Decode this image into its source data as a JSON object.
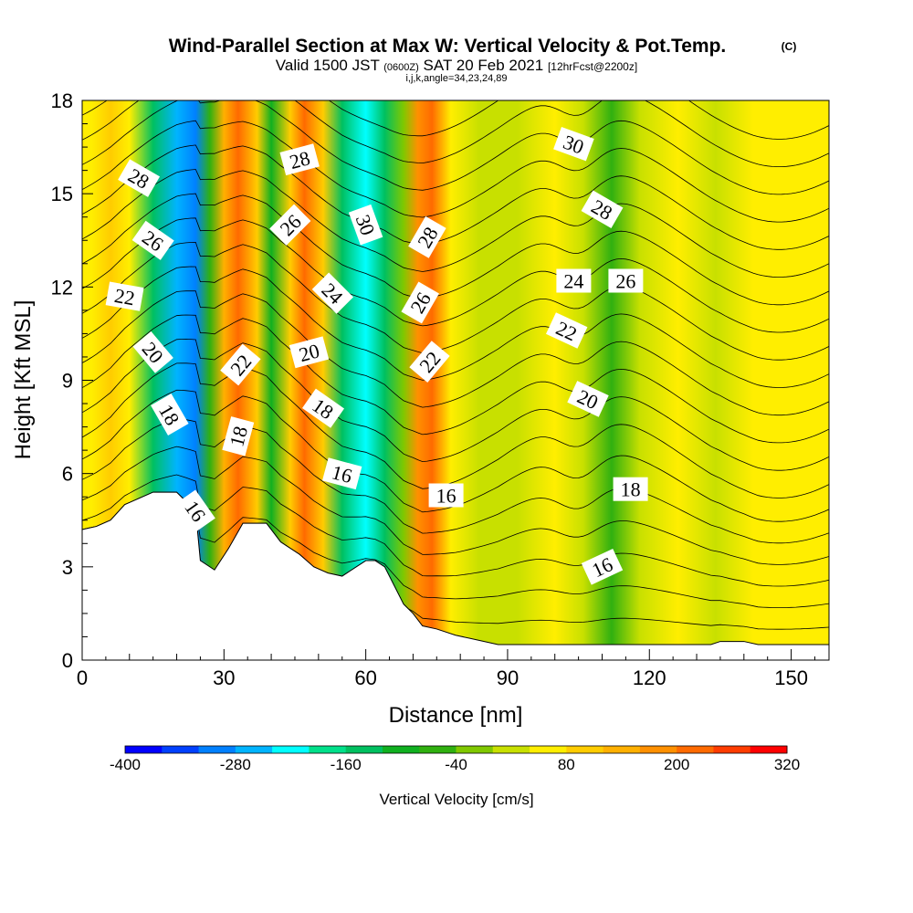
{
  "header": {
    "title": "Wind-Parallel Section at Max W: Vertical Velocity & Pot.Temp.",
    "copyright": "(C)",
    "valid_prefix": "Valid 1500 JST",
    "valid_utc": "(0600Z)",
    "valid_date": "SAT 20 Feb 2021",
    "forecast": "[12hrFcst@2200z]",
    "indices": "i,j,k,angle=34,23,24,89"
  },
  "chart_data": {
    "type": "heatmap",
    "xlabel": "Distance [nm]",
    "ylabel": "Height [Kft MSL]",
    "xlim": [
      0,
      158
    ],
    "ylim": [
      0,
      18
    ],
    "x_ticks": [
      0,
      30,
      60,
      90,
      120,
      150
    ],
    "y_ticks": [
      0,
      3,
      6,
      9,
      12,
      15,
      18
    ],
    "colorbar": {
      "label": "Vertical Velocity [cm/s]",
      "ticks": [
        -400,
        -280,
        -160,
        -40,
        80,
        200,
        320
      ],
      "range": [
        -400,
        320
      ],
      "step": 40,
      "colors": [
        "#0000ff",
        "#0040ff",
        "#0080ff",
        "#00b4ff",
        "#00ffff",
        "#00e08a",
        "#00c060",
        "#10b020",
        "#30b010",
        "#80c800",
        "#c8e000",
        "#ffee00",
        "#ffcc00",
        "#ffb000",
        "#ff9000",
        "#ff6a00",
        "#ff3c00",
        "#ff0000",
        "#d0002a",
        "#a00060",
        "#6a0090"
      ]
    },
    "vertical_velocity_bands": [
      {
        "x": 2,
        "w": 55
      },
      {
        "x": 6,
        "w": 90
      },
      {
        "x": 10,
        "w": 50
      },
      {
        "x": 15,
        "w": -140
      },
      {
        "x": 20,
        "w": -250
      },
      {
        "x": 24,
        "w": -310
      },
      {
        "x": 27,
        "w": -60
      },
      {
        "x": 30,
        "w": 150
      },
      {
        "x": 33,
        "w": 230
      },
      {
        "x": 37,
        "w": 110
      },
      {
        "x": 40,
        "w": -90
      },
      {
        "x": 44,
        "w": 100
      },
      {
        "x": 47,
        "w": 200
      },
      {
        "x": 51,
        "w": 80
      },
      {
        "x": 55,
        "w": -160
      },
      {
        "x": 60,
        "w": -220
      },
      {
        "x": 64,
        "w": -150
      },
      {
        "x": 68,
        "w": -40
      },
      {
        "x": 71,
        "w": 170
      },
      {
        "x": 74,
        "w": 220
      },
      {
        "x": 78,
        "w": 70
      },
      {
        "x": 84,
        "w": 0
      },
      {
        "x": 92,
        "w": 10
      },
      {
        "x": 100,
        "w": 50
      },
      {
        "x": 106,
        "w": 20
      },
      {
        "x": 112,
        "w": -70
      },
      {
        "x": 118,
        "w": 10
      },
      {
        "x": 126,
        "w": 45
      },
      {
        "x": 134,
        "w": 20
      },
      {
        "x": 142,
        "w": 60
      },
      {
        "x": 150,
        "w": 40
      },
      {
        "x": 156,
        "w": 70
      }
    ],
    "terrain": {
      "x": [
        0,
        3,
        6,
        9,
        15,
        20,
        24,
        25,
        28,
        31,
        34,
        39,
        42,
        46,
        49,
        52,
        55,
        57,
        60,
        62,
        64,
        66,
        68,
        70,
        72,
        75,
        79,
        82,
        88,
        95,
        100,
        110,
        120,
        125,
        130,
        133,
        135,
        138,
        140,
        143,
        147,
        151,
        155,
        158
      ],
      "height": [
        4.2,
        4.3,
        4.5,
        5.0,
        5.4,
        5.4,
        4.8,
        3.2,
        2.9,
        3.6,
        4.4,
        4.4,
        3.8,
        3.4,
        3.0,
        2.8,
        2.7,
        2.9,
        3.2,
        3.2,
        3.0,
        2.4,
        1.8,
        1.5,
        1.1,
        1.0,
        0.8,
        0.7,
        0.5,
        0.5,
        0.5,
        0.5,
        0.5,
        0.5,
        0.5,
        0.5,
        0.6,
        0.6,
        0.6,
        0.5,
        0.5,
        0.5,
        0.5,
        0.5
      ]
    },
    "theta_contour_labels": [
      {
        "label": "28",
        "x": 12,
        "y": 15.5,
        "angle": 30
      },
      {
        "label": "26",
        "x": 15,
        "y": 13.5,
        "angle": 35
      },
      {
        "label": "22",
        "x": 9,
        "y": 11.7,
        "angle": 10
      },
      {
        "label": "20",
        "x": 15,
        "y": 9.9,
        "angle": 50
      },
      {
        "label": "18",
        "x": 18.5,
        "y": 7.9,
        "angle": 60
      },
      {
        "label": "16",
        "x": 24,
        "y": 4.8,
        "angle": 55
      },
      {
        "label": "18",
        "x": 33,
        "y": 7.2,
        "angle": -75
      },
      {
        "label": "22",
        "x": 33.5,
        "y": 9.5,
        "angle": -50
      },
      {
        "label": "26",
        "x": 44,
        "y": 14.0,
        "angle": -45
      },
      {
        "label": "28",
        "x": 46,
        "y": 16.1,
        "angle": -15
      },
      {
        "label": "20",
        "x": 48,
        "y": 9.9,
        "angle": -15
      },
      {
        "label": "24",
        "x": 53,
        "y": 11.8,
        "angle": 45
      },
      {
        "label": "18",
        "x": 51,
        "y": 8.1,
        "angle": 35
      },
      {
        "label": "16",
        "x": 55,
        "y": 6.0,
        "angle": 15
      },
      {
        "label": "30",
        "x": 60,
        "y": 14.0,
        "angle": 70
      },
      {
        "label": "28",
        "x": 73,
        "y": 13.6,
        "angle": -60
      },
      {
        "label": "26",
        "x": 71.5,
        "y": 11.5,
        "angle": -60
      },
      {
        "label": "22",
        "x": 73.5,
        "y": 9.6,
        "angle": -50
      },
      {
        "label": "16",
        "x": 77,
        "y": 5.3,
        "angle": 0
      },
      {
        "label": "30",
        "x": 104,
        "y": 16.6,
        "angle": 20
      },
      {
        "label": "28",
        "x": 110,
        "y": 14.5,
        "angle": 30
      },
      {
        "label": "24",
        "x": 104,
        "y": 12.2,
        "angle": 0
      },
      {
        "label": "26",
        "x": 115,
        "y": 12.2,
        "angle": 0
      },
      {
        "label": "22",
        "x": 102.5,
        "y": 10.6,
        "angle": 25
      },
      {
        "label": "20",
        "x": 107,
        "y": 8.4,
        "angle": 25
      },
      {
        "label": "18",
        "x": 116,
        "y": 5.5,
        "angle": 0
      },
      {
        "label": "16",
        "x": 110,
        "y": 3.0,
        "angle": -25
      }
    ]
  }
}
